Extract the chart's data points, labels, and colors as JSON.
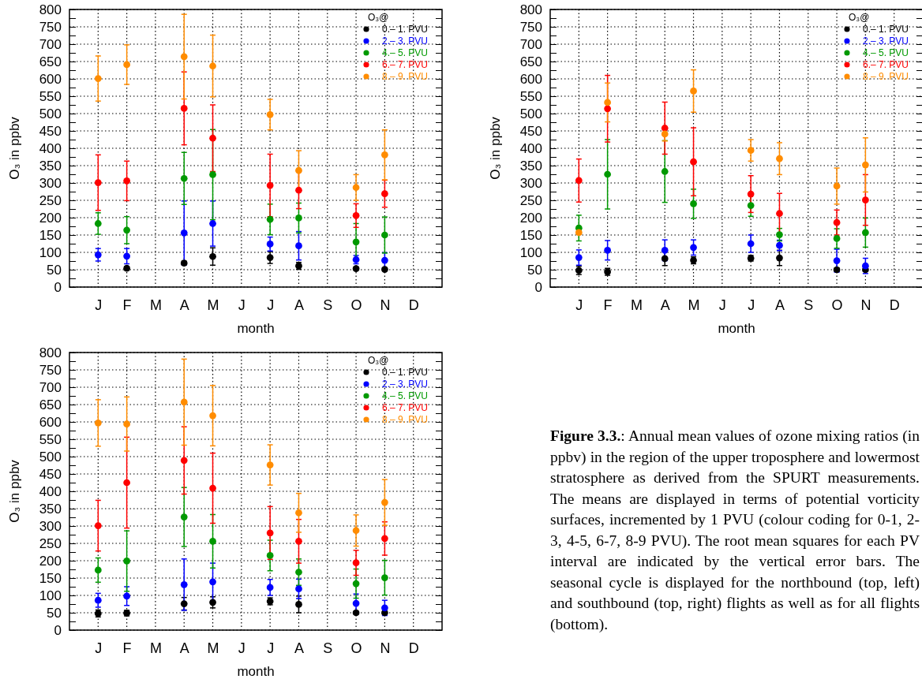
{
  "chart_data": [
    {
      "type": "scatter",
      "xlabel": "month",
      "ylabel": "O₃ in ppbv",
      "legend_title": "O₃@",
      "legend": "top right",
      "grid": true,
      "marker": "circle",
      "categories": [
        "J",
        "F",
        "M",
        "A",
        "M",
        "J",
        "J",
        "A",
        "S",
        "O",
        "N",
        "D"
      ],
      "ylim": [
        0,
        800
      ],
      "yticks": [
        0,
        {
          "value": 25,
          "label": null
        },
        50,
        {
          "value": 75,
          "label": null
        },
        100,
        {
          "value": 125,
          "label": null
        },
        150,
        {
          "value": 175,
          "label": null
        },
        200,
        {
          "value": 225,
          "label": null
        },
        250,
        {
          "value": 275,
          "label": null
        },
        300,
        {
          "value": 325,
          "label": null
        },
        350,
        {
          "value": 375,
          "label": null
        },
        400,
        {
          "value": 425,
          "label": null
        },
        450,
        {
          "value": 475,
          "label": null
        },
        500,
        {
          "value": 525,
          "label": null
        },
        550,
        {
          "value": 575,
          "label": null
        },
        600,
        {
          "value": 625,
          "label": null
        },
        650,
        {
          "value": 675,
          "label": null
        },
        700,
        {
          "value": 725,
          "label": null
        },
        750,
        {
          "value": 775,
          "label": null
        },
        800
      ],
      "series": [
        {
          "name": "0.– 1. PVU",
          "color": "#000000",
          "values": [
            null,
            54,
            null,
            69,
            88,
            null,
            85,
            61,
            null,
            53,
            51,
            null
          ],
          "errors": [
            null,
            5,
            null,
            5,
            25,
            null,
            17,
            10,
            null,
            4,
            4,
            null
          ]
        },
        {
          "name": "2.– 3. PVU",
          "color": "#0000ff",
          "values": [
            93,
            89,
            null,
            156,
            183,
            null,
            124,
            119,
            null,
            79,
            77,
            null
          ],
          "errors": [
            18,
            22,
            null,
            92,
            65,
            null,
            20,
            41,
            null,
            12,
            22,
            null
          ]
        },
        {
          "name": "4.– 5. PVU",
          "color": "#009900",
          "values": [
            183,
            164,
            null,
            313,
            324,
            null,
            195,
            199,
            null,
            130,
            150,
            null
          ],
          "errors": [
            31,
            39,
            null,
            75,
            130,
            null,
            44,
            43,
            null,
            53,
            52,
            null
          ]
        },
        {
          "name": "6.– 7. PVU",
          "color": "#ff0000",
          "values": [
            301,
            306,
            null,
            515,
            429,
            null,
            293,
            279,
            null,
            206,
            269,
            null
          ],
          "errors": [
            80,
            57,
            null,
            105,
            96,
            null,
            90,
            53,
            null,
            34,
            39,
            null
          ]
        },
        {
          "name": "8.– 9. PVU",
          "color": "#ff8c00",
          "values": [
            601,
            641,
            null,
            664,
            637,
            null,
            497,
            336,
            null,
            287,
            381,
            null
          ],
          "errors": [
            65,
            57,
            null,
            122,
            89,
            null,
            44,
            57,
            null,
            37,
            72,
            null
          ]
        }
      ]
    },
    {
      "type": "scatter",
      "xlabel": "month",
      "ylabel": "O₃ in ppbv",
      "legend_title": "O₃@",
      "legend": "top right",
      "grid": true,
      "marker": "circle",
      "categories": [
        "J",
        "F",
        "M",
        "A",
        "M",
        "J",
        "J",
        "A",
        "S",
        "O",
        "N",
        "D"
      ],
      "ylim": [
        0,
        800
      ],
      "yticks": [
        0,
        {
          "value": 25,
          "label": null
        },
        50,
        {
          "value": 75,
          "label": null
        },
        100,
        {
          "value": 125,
          "label": null
        },
        150,
        {
          "value": 175,
          "label": null
        },
        200,
        {
          "value": 225,
          "label": null
        },
        250,
        {
          "value": 275,
          "label": null
        },
        300,
        {
          "value": 325,
          "label": null
        },
        350,
        {
          "value": 375,
          "label": null
        },
        400,
        {
          "value": 425,
          "label": null
        },
        450,
        {
          "value": 475,
          "label": null
        },
        500,
        {
          "value": 525,
          "label": null
        },
        550,
        {
          "value": 575,
          "label": null
        },
        600,
        {
          "value": 625,
          "label": null
        },
        650,
        {
          "value": 675,
          "label": null
        },
        700,
        {
          "value": 725,
          "label": null
        },
        750,
        {
          "value": 775,
          "label": null
        },
        800
      ],
      "series": [
        {
          "name": "0.– 1. PVU",
          "color": "#000000",
          "values": [
            48,
            44,
            null,
            82,
            77,
            null,
            83,
            84,
            null,
            50,
            50,
            null
          ],
          "errors": [
            12,
            10,
            null,
            20,
            10,
            null,
            8,
            22,
            null,
            5,
            5,
            null
          ]
        },
        {
          "name": "2.– 3. PVU",
          "color": "#0000ff",
          "values": [
            85,
            106,
            null,
            106,
            114,
            null,
            125,
            120,
            null,
            76,
            61,
            null
          ],
          "errors": [
            22,
            28,
            null,
            30,
            22,
            null,
            25,
            15,
            null,
            33,
            22,
            null
          ]
        },
        {
          "name": "4.– 5. PVU",
          "color": "#009900",
          "values": [
            170,
            325,
            null,
            333,
            240,
            null,
            235,
            151,
            null,
            140,
            157,
            null
          ],
          "errors": [
            37,
            100,
            null,
            89,
            42,
            null,
            31,
            18,
            null,
            28,
            42,
            null
          ]
        },
        {
          "name": "6.– 7. PVU",
          "color": "#ff0000",
          "values": [
            307,
            514,
            null,
            458,
            361,
            null,
            268,
            212,
            null,
            186,
            251,
            null
          ],
          "errors": [
            62,
            96,
            null,
            75,
            98,
            null,
            53,
            58,
            null,
            36,
            73,
            null
          ]
        },
        {
          "name": "8.– 9. PVU",
          "color": "#ff8c00",
          "values": [
            157,
            532,
            null,
            441,
            565,
            null,
            394,
            370,
            null,
            291,
            352,
            null
          ],
          "errors": [
            5,
            56,
            null,
            20,
            61,
            null,
            31,
            46,
            null,
            52,
            78,
            null
          ]
        }
      ]
    },
    {
      "type": "scatter",
      "xlabel": "month",
      "ylabel": "O₃ in ppbv",
      "legend_title": "O₃@",
      "legend": "top right",
      "grid": true,
      "marker": "circle",
      "categories": [
        "J",
        "F",
        "M",
        "A",
        "M",
        "J",
        "J",
        "A",
        "S",
        "O",
        "N",
        "D"
      ],
      "ylim": [
        0,
        800
      ],
      "yticks": [
        0,
        {
          "value": 25,
          "label": null
        },
        50,
        {
          "value": 75,
          "label": null
        },
        100,
        {
          "value": 125,
          "label": null
        },
        150,
        {
          "value": 175,
          "label": null
        },
        200,
        {
          "value": 225,
          "label": null
        },
        250,
        {
          "value": 275,
          "label": null
        },
        300,
        {
          "value": 325,
          "label": null
        },
        350,
        {
          "value": 375,
          "label": null
        },
        400,
        {
          "value": 425,
          "label": null
        },
        450,
        {
          "value": 475,
          "label": null
        },
        500,
        {
          "value": 525,
          "label": null
        },
        550,
        {
          "value": 575,
          "label": null
        },
        600,
        {
          "value": 625,
          "label": null
        },
        650,
        {
          "value": 675,
          "label": null
        },
        700,
        {
          "value": 725,
          "label": null
        },
        750,
        {
          "value": 775,
          "label": null
        },
        800
      ],
      "series": [
        {
          "name": "0.– 1. PVU",
          "color": "#000000",
          "values": [
            48,
            49,
            null,
            76,
            80,
            null,
            83,
            74,
            null,
            50,
            50,
            null
          ],
          "errors": [
            10,
            8,
            null,
            18,
            16,
            null,
            10,
            24,
            null,
            4,
            4,
            null
          ]
        },
        {
          "name": "2.– 3. PVU",
          "color": "#0000ff",
          "values": [
            86,
            98,
            null,
            131,
            139,
            null,
            123,
            119,
            null,
            77,
            64,
            null
          ],
          "errors": [
            20,
            27,
            null,
            74,
            54,
            null,
            23,
            28,
            null,
            27,
            22,
            null
          ]
        },
        {
          "name": "4.– 5. PVU",
          "color": "#009900",
          "values": [
            173,
            199,
            null,
            326,
            256,
            null,
            215,
            167,
            null,
            134,
            151,
            null
          ],
          "errors": [
            35,
            87,
            null,
            85,
            77,
            null,
            44,
            38,
            null,
            42,
            50,
            null
          ]
        },
        {
          "name": "6.– 7. PVU",
          "color": "#ff0000",
          "values": [
            301,
            425,
            null,
            489,
            409,
            null,
            280,
            256,
            null,
            194,
            264,
            null
          ],
          "errors": [
            73,
            131,
            null,
            97,
            101,
            null,
            76,
            63,
            null,
            36,
            48,
            null
          ]
        },
        {
          "name": "8.– 9. PVU",
          "color": "#ff8c00",
          "values": [
            597,
            594,
            null,
            657,
            618,
            null,
            476,
            338,
            null,
            287,
            368,
            null
          ],
          "errors": [
            67,
            78,
            null,
            124,
            87,
            null,
            58,
            56,
            null,
            45,
            66,
            null
          ]
        }
      ]
    },
    {
      "type": "other",
      "title": "Figure 3.3.",
      "annotations": [
        ": Annual mean values of ozone mixing ratios (in ppbv) in the region of the upper troposphere and lowermost stratosphere as derived from the SPURT measurements. The means are displayed in terms of potential vorticity surfaces, incremented by 1 PVU (colour coding for 0-1, 2-3, 4-5, 6-7, 8-9 PVU). The root mean squares for each PV interval are indicated by the vertical error bars. The seasonal cycle is displayed for the northbound (top, left) and southbound (top, right) flights as well as for all flights (bottom)."
      ]
    }
  ]
}
